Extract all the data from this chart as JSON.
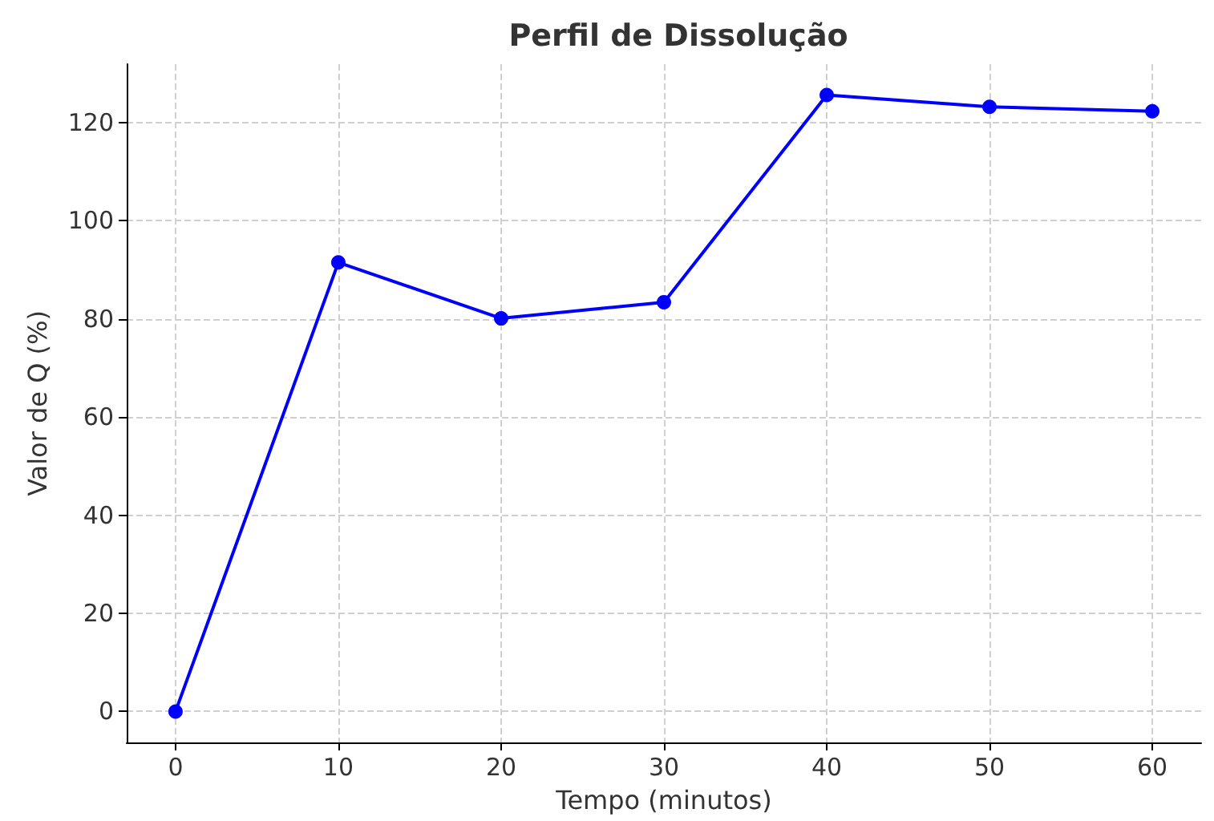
{
  "chart_data": {
    "type": "line",
    "title": "Perfil de Dissolução",
    "xlabel": "Tempo (minutos)",
    "ylabel": "Valor de Q (%)",
    "x": [
      0,
      10,
      20,
      30,
      40,
      50,
      60
    ],
    "series": [
      {
        "color": "#0000ff",
        "values": [
          0,
          91.5,
          80.1,
          83.4,
          125.6,
          123.2,
          122.3
        ]
      }
    ],
    "xlim": [
      -3,
      63
    ],
    "xticks": [
      0,
      10,
      20,
      30,
      40,
      50,
      60
    ],
    "ylim": [
      -6.3,
      131.9
    ],
    "yticks": [
      0,
      20,
      40,
      60,
      80,
      100,
      120
    ],
    "grid": true,
    "marker": "circle",
    "line_style": "solid"
  }
}
